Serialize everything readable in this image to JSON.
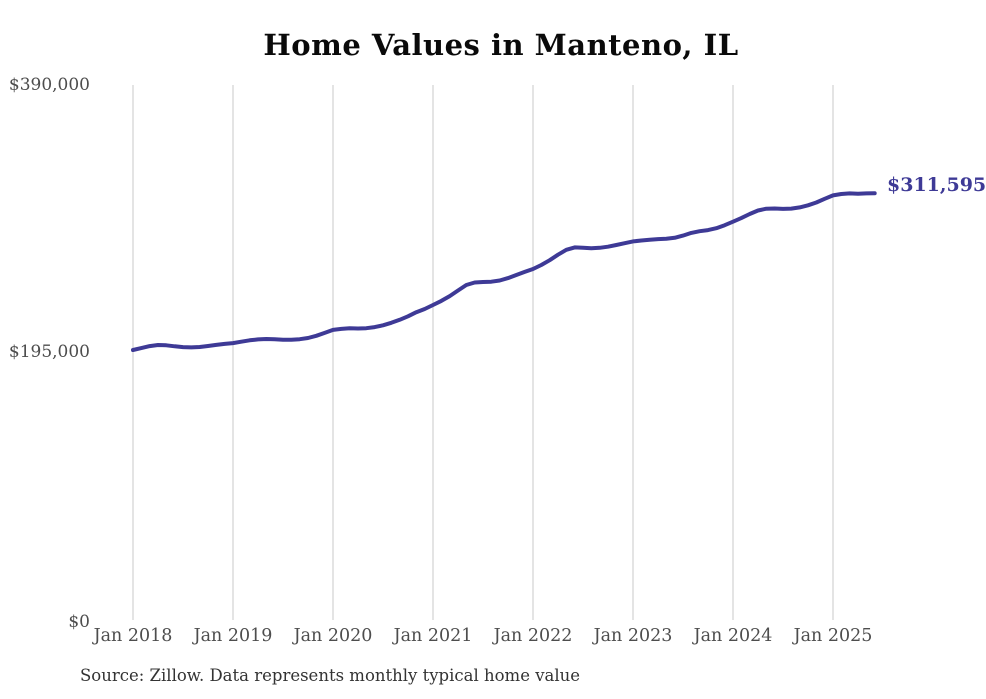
{
  "title": "Home Values in Manteno, IL",
  "latest_value_label": "$311,595",
  "source_note": "Source: Zillow. Data represents monthly typical home value",
  "colors": {
    "line": "#3e3a96",
    "grid": "#c9c9c9",
    "axis_text": "#4d4d4d",
    "title_text": "#0a0a0a",
    "source_text": "#333333"
  },
  "chart_data": {
    "type": "line",
    "title": "Home Values in Manteno, IL",
    "series_name": "Typical home value (monthly)",
    "start_month": "Jan 2018",
    "frequency": "monthly",
    "x_tick_labels": [
      "Jan 2018",
      "Jan 2019",
      "Jan 2020",
      "Jan 2021",
      "Jan 2022",
      "Jan 2023",
      "Jan 2024",
      "Jan 2025"
    ],
    "y_tick_labels": [
      "$0",
      "$195,000",
      "$390,000"
    ],
    "ylim": [
      0,
      390000
    ],
    "grid": "vertical-year-gridlines-only",
    "legend": "none",
    "end_annotation": "$311,595",
    "values": [
      197900,
      199300,
      200700,
      201500,
      201300,
      200600,
      200000,
      199800,
      200100,
      200800,
      201600,
      202300,
      202900,
      203900,
      204900,
      205600,
      205900,
      205700,
      205400,
      205300,
      205700,
      206600,
      208200,
      210300,
      212500,
      213200,
      213600,
      213500,
      213700,
      214500,
      215800,
      217600,
      219800,
      222300,
      225300,
      227600,
      230500,
      233500,
      237000,
      241000,
      245000,
      246800,
      247200,
      247400,
      248300,
      250000,
      252300,
      254500,
      256600,
      259500,
      263000,
      267000,
      270500,
      272300,
      272000,
      271600,
      272000,
      272800,
      274000,
      275300,
      276600,
      277300,
      277800,
      278300,
      278600,
      279200,
      280800,
      282800,
      284000,
      284800,
      286200,
      288400,
      290900,
      293500,
      296500,
      299000,
      300300,
      300500,
      300200,
      300400,
      301300,
      302800,
      304800,
      307500,
      310000,
      311000,
      311400,
      311200,
      311400,
      311595
    ]
  }
}
